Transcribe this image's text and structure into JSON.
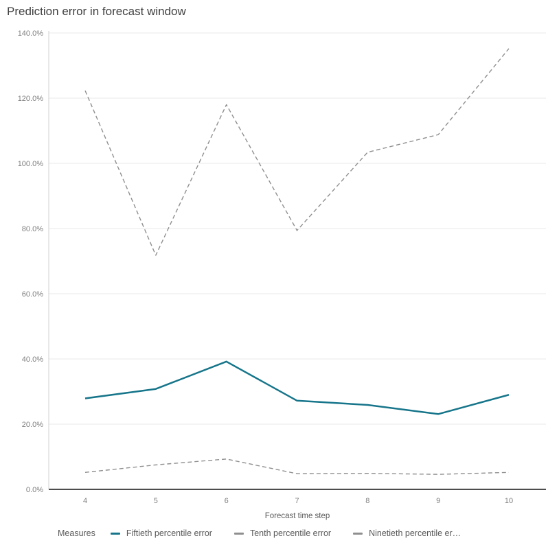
{
  "chart_data": {
    "type": "line",
    "title": "Prediction error in forecast window",
    "xlabel": "Forecast time step",
    "ylabel": "",
    "legend_title": "Measures",
    "legend_position": "bottom",
    "grid": true,
    "x": [
      4,
      5,
      6,
      7,
      8,
      9,
      10
    ],
    "x_ticks": [
      "4",
      "5",
      "6",
      "7",
      "8",
      "9",
      "10"
    ],
    "y_ticks": [
      "0.0%",
      "20.0%",
      "40.0%",
      "60.0%",
      "80.0%",
      "100.0%",
      "120.0%",
      "140.0%"
    ],
    "ylim": [
      0,
      140
    ],
    "y_unit": "%",
    "series": [
      {
        "name": "Fiftieth percentile error",
        "legend_label": "Fiftieth percentile error",
        "style": "solid",
        "color": "#16758a",
        "values": [
          27.9,
          30.8,
          39.2,
          27.2,
          25.9,
          23.1,
          29.0
        ]
      },
      {
        "name": "Tenth percentile error",
        "legend_label": "Tenth percentile error",
        "style": "dashed",
        "color": "#8f8f8f",
        "values": [
          5.2,
          7.5,
          9.3,
          4.8,
          4.9,
          4.6,
          5.2
        ]
      },
      {
        "name": "Ninetieth percentile error",
        "legend_label": "Ninetieth percentile er…",
        "style": "dashed",
        "color": "#8f8f8f",
        "values": [
          122.3,
          71.8,
          118.0,
          79.4,
          103.4,
          108.8,
          135.2
        ]
      }
    ],
    "colors": {
      "grid_line": "#e8e8e8",
      "y_axis_line": "#d0d0d0",
      "x_axis_line": "#4d4d4d",
      "tick_text": "#7f7f7f",
      "label_text": "#595959",
      "title_text": "#404040"
    }
  }
}
